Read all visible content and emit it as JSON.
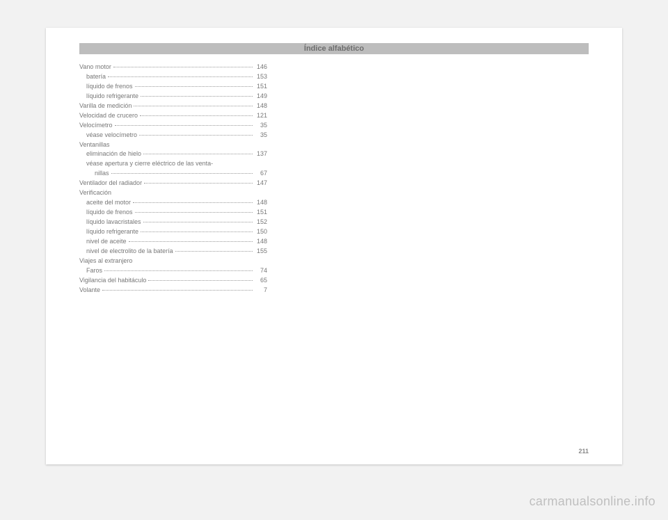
{
  "header": "Índice alfabético",
  "page_number": "211",
  "watermark": "carmanualsonline.info",
  "entries": [
    {
      "level": 0,
      "label": "Vano motor",
      "page": "146"
    },
    {
      "level": 1,
      "label": "batería",
      "page": "153"
    },
    {
      "level": 1,
      "label": "líquido de frenos",
      "page": "151"
    },
    {
      "level": 1,
      "label": "líquido refrigerante",
      "page": "149"
    },
    {
      "level": 0,
      "label": "Varilla de medición",
      "page": "148"
    },
    {
      "level": 0,
      "label": "Velocidad de crucero",
      "page": "121"
    },
    {
      "level": 0,
      "label": "Velocímetro",
      "page": "35"
    },
    {
      "level": 1,
      "label": "véase velocímetro",
      "page": "35"
    },
    {
      "level": 0,
      "label": "Ventanillas",
      "page": ""
    },
    {
      "level": 1,
      "label": "eliminación de hielo",
      "page": "137"
    },
    {
      "level": 1,
      "label": "véase apertura y cierre eléctrico de las venta-",
      "page": ""
    },
    {
      "level": 2,
      "label": "nillas",
      "page": "67"
    },
    {
      "level": 0,
      "label": "Ventilador del radiador",
      "page": "147"
    },
    {
      "level": 0,
      "label": "Verificación",
      "page": ""
    },
    {
      "level": 1,
      "label": "aceite del motor",
      "page": "148"
    },
    {
      "level": 1,
      "label": "líquido de frenos",
      "page": "151"
    },
    {
      "level": 1,
      "label": "líquido lavacristales",
      "page": "152"
    },
    {
      "level": 1,
      "label": "líquido refrigerante",
      "page": "150"
    },
    {
      "level": 1,
      "label": "nivel de aceite",
      "page": "148"
    },
    {
      "level": 1,
      "label": "nivel de electrolito de la batería",
      "page": "155"
    },
    {
      "level": 0,
      "label": "Viajes al extranjero",
      "page": ""
    },
    {
      "level": 1,
      "label": "Faros",
      "page": "74"
    },
    {
      "level": 0,
      "label": "Vigilancia del habitáculo",
      "page": "65"
    },
    {
      "level": 0,
      "label": "Volante",
      "page": "7"
    }
  ]
}
